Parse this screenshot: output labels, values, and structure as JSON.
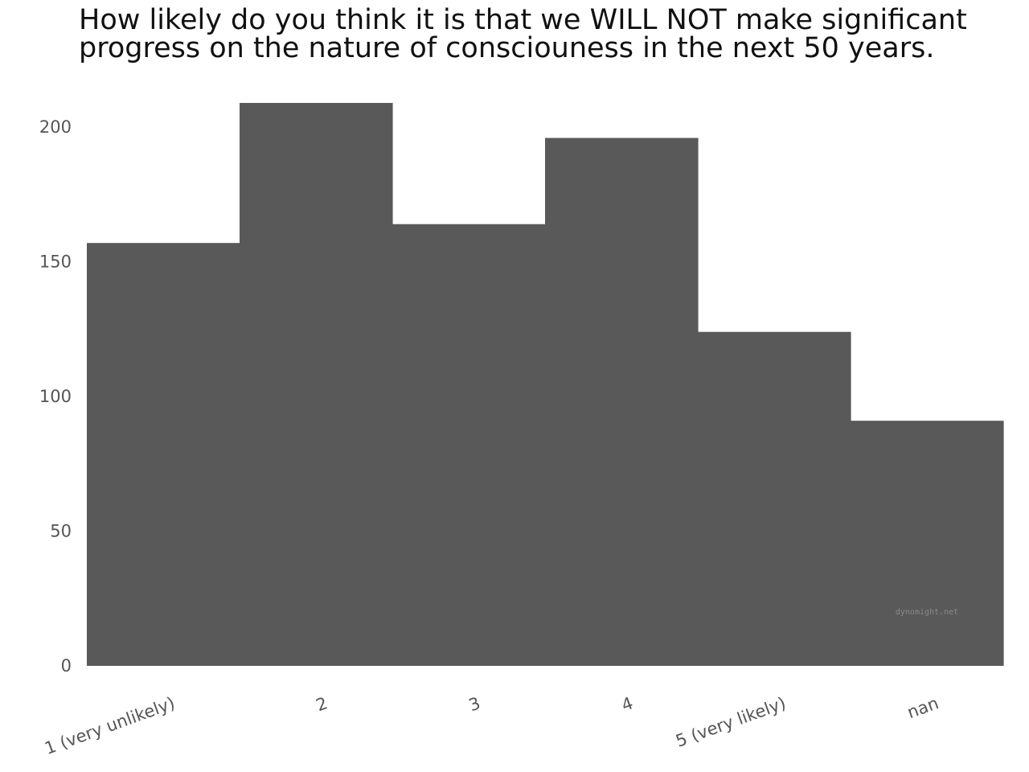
{
  "chart_data": {
    "type": "bar",
    "title": "How likely do you think it is that we WILL NOT make significant progress on the nature of consciouness in the next 50 years.",
    "xlabel": "",
    "ylabel": "",
    "categories": [
      "1 (very unlikely)",
      "2",
      "3",
      "4",
      "5 (very likely)",
      "nan"
    ],
    "values": [
      157,
      209,
      164,
      196,
      124,
      91
    ],
    "ylim": [
      0,
      209
    ],
    "yticks": [
      0,
      50,
      100,
      150,
      200
    ],
    "grid": false,
    "legend": "none",
    "bar_color": "#595959"
  },
  "watermark": "dynomight.net"
}
